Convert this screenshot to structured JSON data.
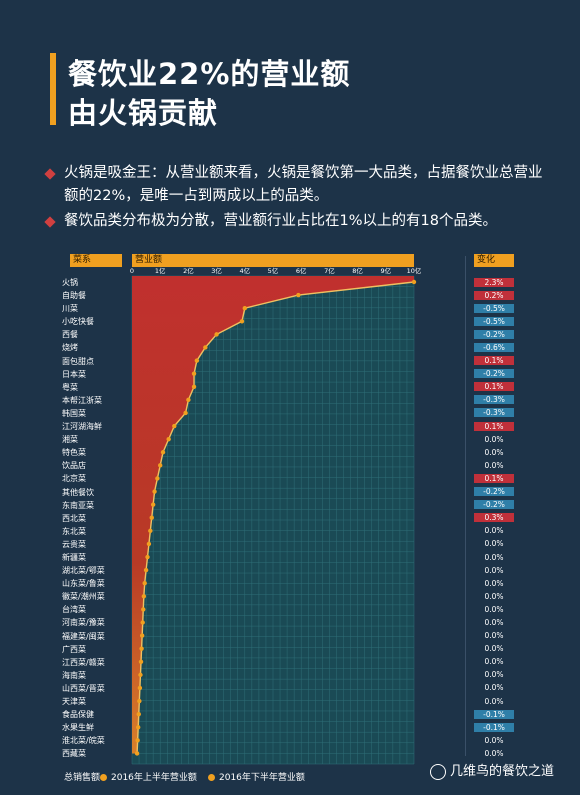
{
  "title": {
    "line1": "餐饮业22%的营业额",
    "line2": "由火锅贡献"
  },
  "bullets": [
    "火锅是吸金王：从营业额来看，火锅是餐饮第一大品类，占据餐饮业总营业额的22%，是唯一占到两成以上的品类。",
    "餐饮品类分布极为分散，营业额行业占比在1%以上的有18个品类。"
  ],
  "headers": {
    "category": "菜系",
    "revenue": "营业额",
    "change": "变化"
  },
  "legend": {
    "total_label": "总销售额",
    "h1": "2016年上半年营业额",
    "h2": "2016年下半年营业额"
  },
  "watermark": "几维鸟的餐饮之道",
  "colors": {
    "background": "#1d3348",
    "accent": "#f0a020",
    "area_red": "#c0302e",
    "grid": "#2f6f78",
    "positive": "#c0303a",
    "negative": "#2f7fa8"
  },
  "chart_data": {
    "type": "area",
    "x_tick_labels": [
      "0",
      "1亿",
      "2亿",
      "3亿",
      "4亿",
      "5亿",
      "6亿",
      "7亿",
      "8亿",
      "9亿",
      "10亿"
    ],
    "xlim": [
      0,
      10
    ],
    "x_unit": "亿",
    "grid": true,
    "categories": [
      "火锅",
      "自助餐",
      "川菜",
      "小吃快餐",
      "西餐",
      "烧烤",
      "面包甜点",
      "日本菜",
      "粤菜",
      "本帮江浙菜",
      "韩国菜",
      "江河湖海鲜",
      "湘菜",
      "特色菜",
      "饮品店",
      "北京菜",
      "其他餐饮",
      "东南亚菜",
      "西北菜",
      "东北菜",
      "云贵菜",
      "新疆菜",
      "湖北菜/鄂菜",
      "山东菜/鲁菜",
      "徽菜/潮州菜",
      "台湾菜",
      "河南菜/豫菜",
      "福建菜/闽菜",
      "广西菜",
      "江西菜/赣菜",
      "海南菜",
      "山西菜/晋菜",
      "天津菜",
      "食品保健",
      "水果生鲜",
      "淮北菜/皖菜",
      "西藏菜"
    ],
    "values": [
      10.0,
      5.9,
      4.0,
      3.9,
      3.0,
      2.6,
      2.3,
      2.2,
      2.2,
      2.0,
      1.9,
      1.5,
      1.3,
      1.1,
      1.0,
      0.9,
      0.8,
      0.75,
      0.7,
      0.65,
      0.6,
      0.55,
      0.5,
      0.45,
      0.42,
      0.4,
      0.38,
      0.36,
      0.34,
      0.32,
      0.3,
      0.28,
      0.26,
      0.24,
      0.22,
      0.2,
      0.18
    ],
    "changes": [
      "2.3%",
      "0.2%",
      "-0.5%",
      "-0.5%",
      "-0.2%",
      "-0.6%",
      "0.1%",
      "-0.2%",
      "0.1%",
      "-0.3%",
      "-0.3%",
      "0.1%",
      "0.0%",
      "0.0%",
      "0.0%",
      "0.1%",
      "-0.2%",
      "-0.2%",
      "0.3%",
      "0.0%",
      "0.0%",
      "0.0%",
      "0.0%",
      "0.0%",
      "0.0%",
      "0.0%",
      "0.0%",
      "0.0%",
      "0.0%",
      "0.0%",
      "0.0%",
      "0.0%",
      "0.0%",
      "-0.1%",
      "-0.1%",
      "0.0%",
      "0.0%"
    ],
    "series": [
      {
        "name": "2016年上半年营业额"
      },
      {
        "name": "2016年下半年营业额"
      }
    ]
  }
}
